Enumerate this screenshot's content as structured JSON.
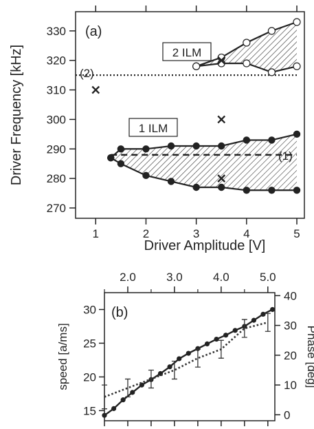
{
  "chart_data": [
    {
      "panel_label": "(a)",
      "type": "scatter",
      "xlabel": "Driver Amplitude [V]",
      "ylabel": "Driver Frequency [kHz]",
      "xlim": [
        0.6,
        5.15
      ],
      "ylim": [
        266.5,
        336.5
      ],
      "x_ticks": [
        1,
        2,
        3,
        4,
        5
      ],
      "y_ticks": [
        270,
        280,
        290,
        300,
        310,
        320,
        330
      ],
      "grid": false,
      "annotations": {
        "box_1ilm": "1 ILM",
        "box_2ilm": "2 ILM",
        "line1_label": "(1)",
        "line2_label": "(2)",
        "x_mark": "x"
      },
      "reference_lines": [
        {
          "name": "(1)",
          "style": "dashed",
          "y": 288,
          "x_range": [
            1.3,
            5.0
          ]
        },
        {
          "name": "(2)",
          "style": "dotted",
          "y": 315,
          "x_range": [
            0.6,
            5.0
          ]
        }
      ],
      "series": [
        {
          "role": "1 ILM upper",
          "marker": "filled-circle",
          "points": [
            [
              1.3,
              287
            ],
            [
              1.5,
              290
            ],
            [
              2.0,
              290
            ],
            [
              2.5,
              291
            ],
            [
              3.0,
              291
            ],
            [
              3.5,
              291
            ],
            [
              4.0,
              293
            ],
            [
              4.5,
              293
            ],
            [
              5.0,
              295
            ]
          ]
        },
        {
          "role": "1 ILM lower",
          "marker": "filled-circle",
          "points": [
            [
              1.3,
              287
            ],
            [
              1.5,
              285
            ],
            [
              2.0,
              281
            ],
            [
              2.5,
              279
            ],
            [
              3.0,
              277
            ],
            [
              3.5,
              277
            ],
            [
              4.0,
              276
            ],
            [
              4.5,
              276
            ],
            [
              5.0,
              276
            ]
          ]
        },
        {
          "role": "2 ILM upper",
          "marker": "open-circle",
          "points": [
            [
              3.0,
              318
            ],
            [
              3.5,
              321
            ],
            [
              4.0,
              326
            ],
            [
              4.5,
              330
            ],
            [
              5.0,
              333
            ]
          ]
        },
        {
          "role": "2 ILM lower",
          "marker": "open-circle",
          "points": [
            [
              3.0,
              318
            ],
            [
              3.5,
              319
            ],
            [
              4.0,
              319
            ],
            [
              4.5,
              316
            ],
            [
              5.0,
              318
            ]
          ]
        },
        {
          "role": "x marks",
          "marker": "x",
          "points": [
            [
              1.0,
              310
            ],
            [
              3.5,
              300
            ],
            [
              3.5,
              280
            ],
            [
              3.5,
              320
            ]
          ]
        }
      ]
    },
    {
      "panel_label": "(b)",
      "type": "line",
      "ylabel": "speed [a/ms]",
      "y2label": "Phase [deg]",
      "top_x_ticks": [
        "2.0",
        "3.0",
        "4.0",
        "5.0"
      ],
      "xlim": [
        1.5,
        5.15
      ],
      "ylim": [
        13.5,
        32.5
      ],
      "y2lim": [
        -2,
        41
      ],
      "y_ticks": [
        15,
        20,
        25,
        30
      ],
      "y2_ticks": [
        0,
        10,
        20,
        30,
        40
      ],
      "grid": false,
      "series": [
        {
          "role": "speed (solid, left axis)",
          "marker": "filled-circle",
          "x": [
            1.5,
            1.7,
            1.9,
            2.1,
            2.3,
            2.5,
            2.7,
            2.9,
            3.1,
            3.3,
            3.5,
            3.7,
            3.9,
            4.1,
            4.3,
            4.5,
            4.7,
            4.9,
            5.1
          ],
          "y": [
            14.3,
            15.3,
            16.6,
            17.7,
            18.8,
            19.6,
            20.5,
            21.5,
            22.7,
            23.5,
            24.2,
            24.9,
            25.6,
            26.2,
            26.9,
            27.5,
            28.4,
            29.3,
            30.0
          ]
        },
        {
          "role": "phase (dotted, right axis, error bars)",
          "x": [
            1.5,
            2.0,
            2.5,
            3.0,
            3.5,
            4.0,
            4.5,
            5.0
          ],
          "y": [
            6,
            9,
            12,
            15,
            19,
            22,
            29,
            31
          ],
          "err": [
            4,
            3,
            3,
            3,
            3,
            3,
            3,
            3
          ]
        }
      ]
    }
  ]
}
